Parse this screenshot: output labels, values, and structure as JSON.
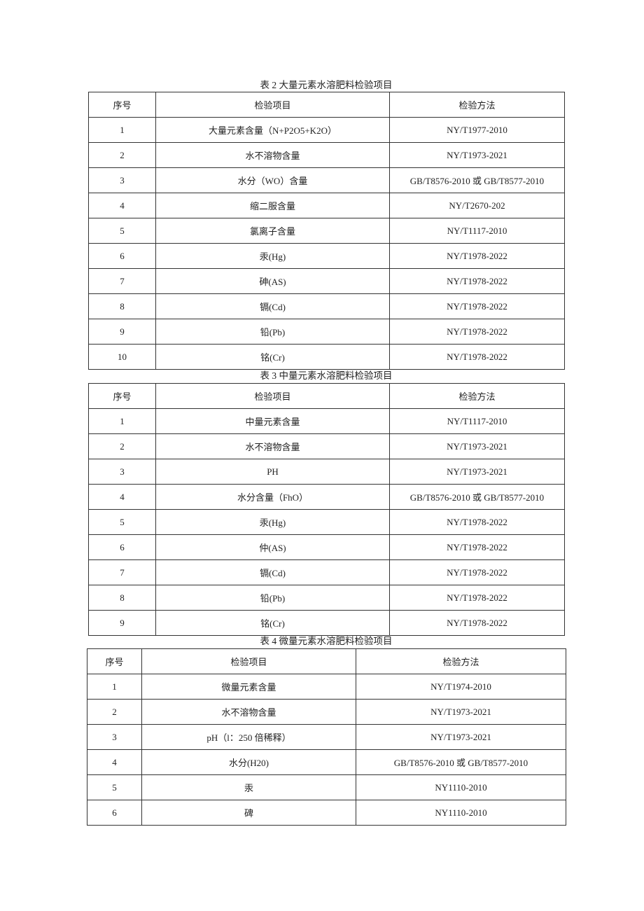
{
  "tables": [
    {
      "caption": "表 2 大量元素水溶肥料检验项目",
      "headers": [
        "序号",
        "检验项目",
        "检验方法"
      ],
      "rows": [
        [
          "1",
          "大量元素含量（N+P2O5+K2O）",
          "NY/T1977-2010"
        ],
        [
          "2",
          "水不溶物含量",
          "NY/T1973-2021"
        ],
        [
          "3",
          "水分（WO）含量",
          "GB/T8576-2010 或 GB/T8577-2010"
        ],
        [
          "4",
          "缩二服含量",
          "NY/T2670-202"
        ],
        [
          "5",
          "氯离子含量",
          "NY/T1117-2010"
        ],
        [
          "6",
          "汞(Hg)",
          "NY/T1978-2022"
        ],
        [
          "7",
          "砷(AS)",
          "NY/T1978-2022"
        ],
        [
          "8",
          "镉(Cd)",
          "NY/T1978-2022"
        ],
        [
          "9",
          "铅(Pb)",
          "NY/T1978-2022"
        ],
        [
          "10",
          "铭(Cr)",
          "NY/T1978-2022"
        ]
      ]
    },
    {
      "caption": "表 3 中量元素水溶肥料检验项目",
      "headers": [
        "序号",
        "检验项目",
        "检验方法"
      ],
      "rows": [
        [
          "1",
          "中量元素含量",
          "NY/T1117-2010"
        ],
        [
          "2",
          "水不溶物含量",
          "NY/T1973-2021"
        ],
        [
          "3",
          "PH",
          "NY/T1973-2021"
        ],
        [
          "4",
          "水分含量（FhO）",
          "GB/T8576-2010 或 GB/T8577-2010"
        ],
        [
          "5",
          "汞(Hg)",
          "NY/T1978-2022"
        ],
        [
          "6",
          "仲(AS)",
          "NY/T1978-2022"
        ],
        [
          "7",
          "镉(Cd)",
          "NY/T1978-2022"
        ],
        [
          "8",
          "铅(Pb)",
          "NY/T1978-2022"
        ],
        [
          "9",
          "铭(Cr)",
          "NY/T1978-2022"
        ]
      ]
    },
    {
      "caption": "表 4 微量元素水溶肥料检验项目",
      "headers": [
        "序号",
        "检验项目",
        "检验方法"
      ],
      "rows": [
        [
          "1",
          "微量元素含量",
          "NY/T1974-2010"
        ],
        [
          "2",
          "水不溶物含量",
          "NY/T1973-2021"
        ],
        [
          "3",
          "pH（l：250 倍稀释）",
          "NY/T1973-2021"
        ],
        [
          "4",
          "水分(H20)",
          "GB/T8576-2010 或 GB/T8577-2010"
        ],
        [
          "5",
          "汞",
          "NY1110-2010"
        ],
        [
          "6",
          "碑",
          "NY1110-2010"
        ]
      ]
    }
  ]
}
